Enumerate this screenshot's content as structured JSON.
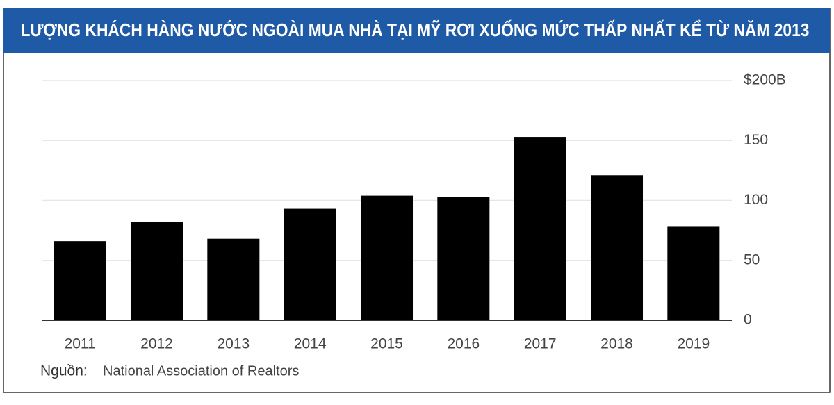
{
  "chart_data": {
    "type": "bar",
    "title": "LƯỢNG KHÁCH HÀNG NƯỚC NGOÀI MUA NHÀ TẠI MỸ RƠI XUỐNG MỨC THẤP NHẤT KỂ TỪ NĂM 2013",
    "categories": [
      "2011",
      "2012",
      "2013",
      "2014",
      "2015",
      "2016",
      "2017",
      "2018",
      "2019"
    ],
    "values": [
      66,
      82,
      68,
      93,
      104,
      103,
      153,
      121,
      78
    ],
    "color": "#000000",
    "ylim": [
      0,
      200
    ],
    "yticks": [
      0,
      50,
      100,
      150,
      {
        "value": 200,
        "label": "$200B"
      }
    ],
    "grid": true,
    "source_label": "Nguồn:",
    "source": "National Association of Realtors"
  }
}
